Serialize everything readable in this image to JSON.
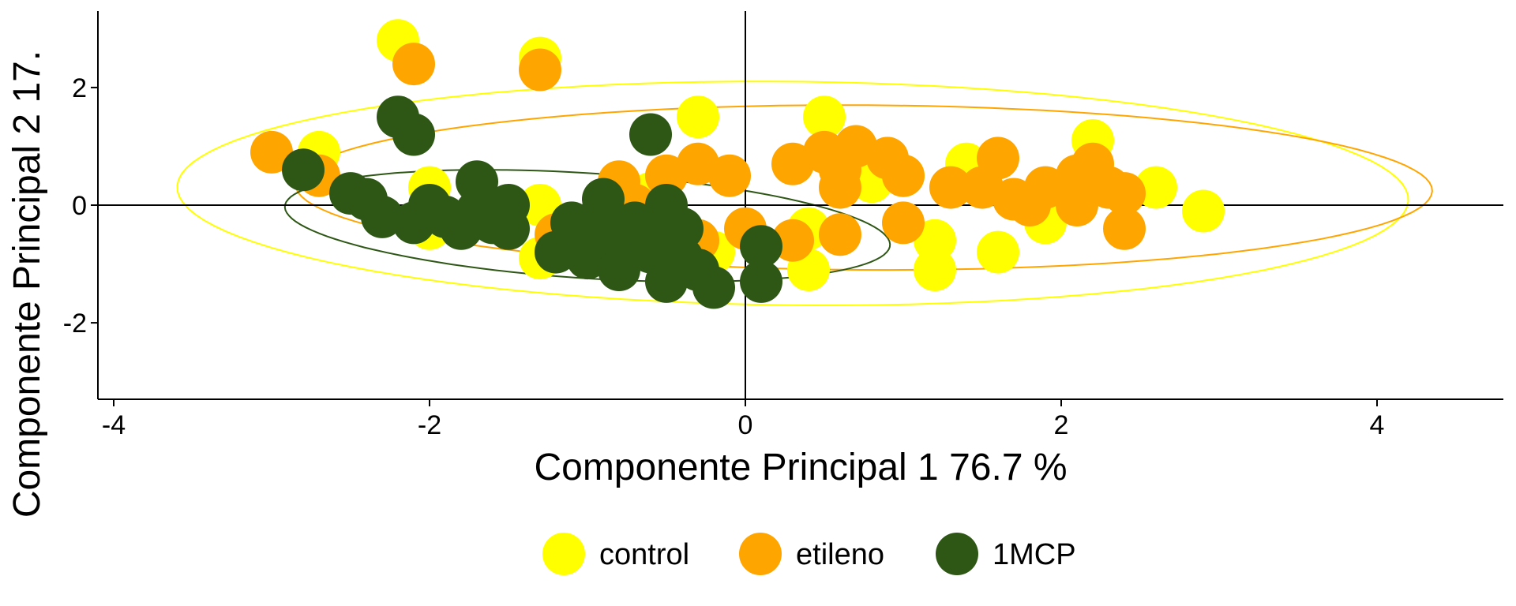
{
  "chart_data": {
    "type": "scatter",
    "xlabel": "Componente Principal 1 76.7 %",
    "ylabel": "Componente Principal 2 17.",
    "xlim": [
      -4.1,
      4.8
    ],
    "ylim": [
      -3.3,
      3.3
    ],
    "xticks": [
      -4,
      -2,
      0,
      2,
      4
    ],
    "yticks": [
      -2,
      0,
      2
    ],
    "legend_position": "bottom",
    "series": [
      {
        "name": "control",
        "color": "#FFFF00",
        "points": [
          [
            -2.2,
            2.8
          ],
          [
            -1.3,
            2.5
          ],
          [
            -2.7,
            0.9
          ],
          [
            -2.0,
            0.3
          ],
          [
            -1.3,
            0.0
          ],
          [
            -1.3,
            -0.9
          ],
          [
            -2.0,
            -0.4
          ],
          [
            -0.3,
            1.5
          ],
          [
            0.5,
            1.5
          ],
          [
            -0.2,
            -0.8
          ],
          [
            0.4,
            -0.4
          ],
          [
            0.4,
            -1.1
          ],
          [
            0.8,
            0.4
          ],
          [
            1.2,
            -0.6
          ],
          [
            1.2,
            -1.1
          ],
          [
            1.4,
            0.7
          ],
          [
            1.6,
            -0.8
          ],
          [
            1.9,
            -0.3
          ],
          [
            2.2,
            1.1
          ],
          [
            2.6,
            0.3
          ],
          [
            2.9,
            -0.1
          ],
          [
            2.0,
            0.2
          ],
          [
            -0.6,
            0.2
          ],
          [
            1.0,
            0.5
          ]
        ]
      },
      {
        "name": "etileno",
        "color": "#FFA500",
        "points": [
          [
            -2.1,
            2.4
          ],
          [
            -1.3,
            2.3
          ],
          [
            -3.0,
            0.9
          ],
          [
            -2.7,
            0.5
          ],
          [
            -0.8,
            0.4
          ],
          [
            -0.5,
            0.5
          ],
          [
            -0.3,
            0.7
          ],
          [
            -0.1,
            0.5
          ],
          [
            -0.7,
            0.0
          ],
          [
            -1.2,
            -0.5
          ],
          [
            0.0,
            -0.4
          ],
          [
            0.3,
            -0.6
          ],
          [
            0.6,
            -0.5
          ],
          [
            0.3,
            0.7
          ],
          [
            0.5,
            0.9
          ],
          [
            0.6,
            0.6
          ],
          [
            0.7,
            1.0
          ],
          [
            0.6,
            0.3
          ],
          [
            0.9,
            0.8
          ],
          [
            1.0,
            0.5
          ],
          [
            1.0,
            -0.3
          ],
          [
            1.3,
            0.3
          ],
          [
            1.5,
            0.3
          ],
          [
            1.6,
            0.8
          ],
          [
            1.7,
            0.1
          ],
          [
            1.9,
            0.3
          ],
          [
            2.1,
            0.5
          ],
          [
            2.2,
            0.7
          ],
          [
            2.3,
            0.3
          ],
          [
            2.4,
            -0.4
          ],
          [
            2.4,
            0.2
          ],
          [
            2.1,
            0.0
          ],
          [
            1.8,
            0.0
          ],
          [
            -0.3,
            -0.6
          ]
        ]
      },
      {
        "name": "1MCP",
        "color": "#2E5716",
        "points": [
          [
            -2.2,
            1.5
          ],
          [
            -2.1,
            1.2
          ],
          [
            -0.6,
            1.2
          ],
          [
            -2.8,
            0.6
          ],
          [
            -2.5,
            0.2
          ],
          [
            -2.4,
            0.1
          ],
          [
            -2.3,
            -0.2
          ],
          [
            -2.1,
            -0.3
          ],
          [
            -2.0,
            0.0
          ],
          [
            -1.9,
            -0.2
          ],
          [
            -1.8,
            -0.4
          ],
          [
            -1.7,
            0.4
          ],
          [
            -1.7,
            -0.1
          ],
          [
            -1.6,
            -0.3
          ],
          [
            -1.5,
            -0.4
          ],
          [
            -1.5,
            0.0
          ],
          [
            -1.2,
            -0.8
          ],
          [
            -1.1,
            -0.3
          ],
          [
            -1.0,
            -0.5
          ],
          [
            -1.0,
            -0.9
          ],
          [
            -0.9,
            0.1
          ],
          [
            -0.9,
            -0.4
          ],
          [
            -0.8,
            -0.6
          ],
          [
            -0.8,
            -1.1
          ],
          [
            -0.7,
            -0.3
          ],
          [
            -0.6,
            -0.5
          ],
          [
            -0.6,
            -0.8
          ],
          [
            -0.5,
            -0.2
          ],
          [
            -0.5,
            -0.6
          ],
          [
            -0.4,
            -0.9
          ],
          [
            -0.4,
            -0.4
          ],
          [
            -0.3,
            -1.1
          ],
          [
            -0.5,
            -1.3
          ],
          [
            -0.2,
            -1.4
          ],
          [
            0.1,
            -0.7
          ],
          [
            0.1,
            -1.3
          ],
          [
            -0.5,
            0.0
          ]
        ]
      }
    ],
    "ellipses": [
      {
        "series": "control",
        "color": "#FFFF00",
        "cx": 0.3,
        "cy": 0.2,
        "rx": 3.9,
        "ry": 1.9,
        "angle_deg": -2
      },
      {
        "series": "etileno",
        "color": "#FFA500",
        "cx": 0.75,
        "cy": 0.3,
        "rx": 3.6,
        "ry": 1.4,
        "angle_deg": -1
      },
      {
        "series": "1MCP",
        "color": "#2E5716",
        "cx": -1.0,
        "cy": -0.35,
        "rx": 1.95,
        "ry": 0.88,
        "angle_deg": -12
      }
    ]
  }
}
